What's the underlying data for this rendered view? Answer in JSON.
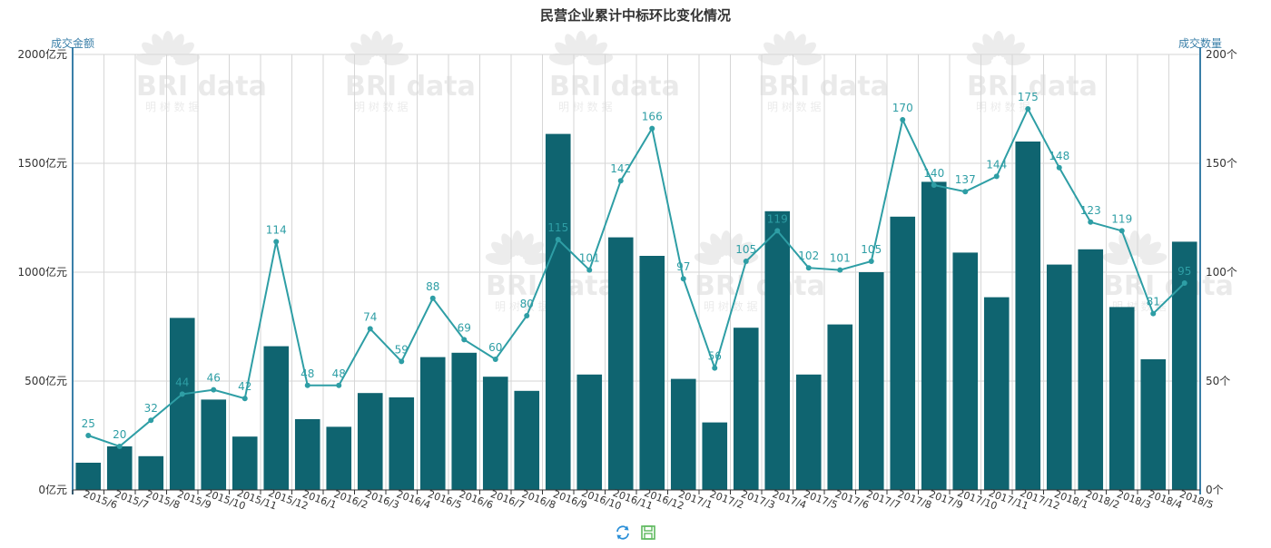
{
  "chart_data": {
    "type": "bar",
    "title": "民营企业累计中标环比变化情况",
    "left_axis": {
      "name": "成交金额",
      "ticks": [
        "0亿元",
        "500亿元",
        "1000亿元",
        "1500亿元",
        "2000亿元"
      ],
      "min": 0,
      "max": 2000
    },
    "right_axis": {
      "name": "成交数量",
      "ticks": [
        "0个",
        "50个",
        "100个",
        "150个",
        "200个"
      ],
      "min": 0,
      "max": 200
    },
    "categories": [
      "2015/6",
      "2015/7",
      "2015/8",
      "2015/9",
      "2015/10",
      "2015/11",
      "2015/12",
      "2016/1",
      "2016/2",
      "2016/3",
      "2016/4",
      "2016/5",
      "2016/6",
      "2016/7",
      "2016/8",
      "2016/9",
      "2016/10",
      "2016/11",
      "2016/12",
      "2017/1",
      "2017/2",
      "2017/3",
      "2017/4",
      "2017/5",
      "2017/6",
      "2017/7",
      "2017/8",
      "2017/9",
      "2017/10",
      "2017/11",
      "2017/12",
      "2018/1",
      "2018/2",
      "2018/3",
      "2018/4",
      "2018/5"
    ],
    "series": [
      {
        "type": "bar",
        "axis": "left",
        "color": "#0f6470",
        "values": [
          125,
          200,
          155,
          790,
          415,
          245,
          660,
          325,
          290,
          445,
          425,
          610,
          630,
          520,
          455,
          1635,
          530,
          1160,
          1075,
          510,
          310,
          745,
          1280,
          530,
          760,
          1000,
          1255,
          1415,
          1090,
          885,
          1600,
          1035,
          1105,
          840,
          600,
          1140
        ]
      },
      {
        "type": "line",
        "axis": "right",
        "color": "#2e9ea5",
        "values": [
          25,
          20,
          32,
          44,
          46,
          42,
          114,
          48,
          48,
          74,
          59,
          88,
          69,
          60,
          80,
          115,
          101,
          142,
          166,
          97,
          56,
          105,
          119,
          102,
          101,
          105,
          170,
          140,
          137,
          144,
          175,
          148,
          123,
          119,
          81,
          95
        ]
      }
    ],
    "grid": true,
    "legend": "none"
  },
  "watermark": {
    "text": "BRI data",
    "subtext": "明 树 数 据"
  },
  "toolbox": {
    "refresh_icon": "refresh-icon",
    "save_icon": "save-icon",
    "refresh_color": "#2a8fd8",
    "save_color": "#5cb85c"
  }
}
